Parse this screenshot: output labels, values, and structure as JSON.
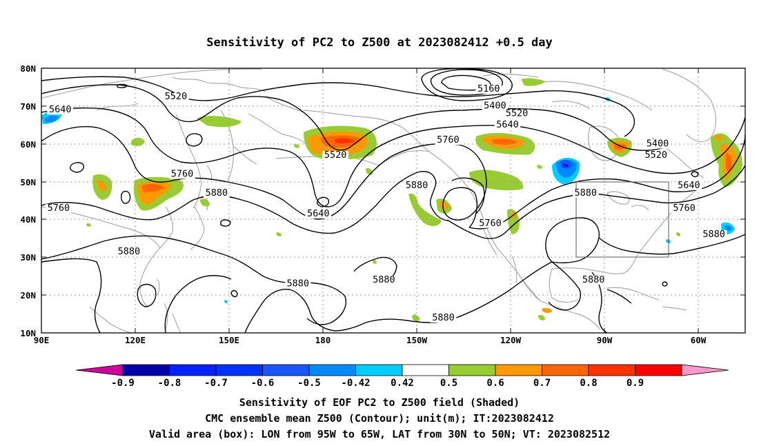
{
  "title": "Sensitivity of PC2 to Z500 at 2023082412 +0.5 day",
  "map": {
    "lat_labels": [
      "80N",
      "70N",
      "60N",
      "50N",
      "40N",
      "30N",
      "20N",
      "10N"
    ],
    "lon_labels": [
      "90E",
      "120E",
      "150E",
      "180",
      "150W",
      "120W",
      "90W",
      "60W"
    ],
    "contour_labels": [
      {
        "text": "5520",
        "lon": 133,
        "lat": 71.8
      },
      {
        "text": "5640",
        "lon": 96,
        "lat": 68.3
      },
      {
        "text": "5160",
        "lon": -127,
        "lat": 73.8
      },
      {
        "text": "5400",
        "lon": -125,
        "lat": 69.3
      },
      {
        "text": "5520",
        "lon": -118,
        "lat": 67.3
      },
      {
        "text": "5640",
        "lon": -121,
        "lat": 64.3
      },
      {
        "text": "5760",
        "lon": -140,
        "lat": 60.3
      },
      {
        "text": "5520",
        "lon": -176,
        "lat": 56.3
      },
      {
        "text": "5400",
        "lon": -73,
        "lat": 59.3
      },
      {
        "text": "5520",
        "lon": -73.5,
        "lat": 56.3
      },
      {
        "text": "5760",
        "lon": 135,
        "lat": 51.3
      },
      {
        "text": "5880",
        "lon": 146,
        "lat": 46.3
      },
      {
        "text": "5880",
        "lon": -150,
        "lat": 48.3
      },
      {
        "text": "5640",
        "lon": 178.5,
        "lat": 40.8
      },
      {
        "text": "5760",
        "lon": -126.5,
        "lat": 38.3
      },
      {
        "text": "5880",
        "lon": -96,
        "lat": 46.3
      },
      {
        "text": "5640",
        "lon": -63,
        "lat": 48.3
      },
      {
        "text": "5760",
        "lon": -64.5,
        "lat": 42.3
      },
      {
        "text": "5760",
        "lon": 95.5,
        "lat": 42.3
      },
      {
        "text": "5880",
        "lon": 118,
        "lat": 30.8
      },
      {
        "text": "5880",
        "lon": 172,
        "lat": 22.3
      },
      {
        "text": "5880",
        "lon": -160.5,
        "lat": 23.3
      },
      {
        "text": "5880",
        "lon": -93.5,
        "lat": 23.3
      },
      {
        "text": "5880",
        "lon": -141.5,
        "lat": 13.3
      },
      {
        "text": "5880",
        "lon": -55,
        "lat": 35.3
      }
    ],
    "valid_box": {
      "lon_from": -95,
      "lon_to": -65,
      "lat_from": 30,
      "lat_to": 50
    }
  },
  "colorbar": {
    "labels": [
      "-0.9",
      "-0.8",
      "-0.7",
      "-0.6",
      "-0.5",
      "-0.42",
      "0.42",
      "0.5",
      "0.6",
      "0.7",
      "0.8",
      "0.9"
    ],
    "colors": [
      "#0000a8",
      "#0022ff",
      "#0033ff",
      "#1a55ff",
      "#0088ff",
      "#00ccff",
      "#ffffff",
      "#99cc33",
      "#ff9900",
      "#ff6600",
      "#ff3300",
      "#ff0000"
    ],
    "left_end_color": "#cc0099",
    "right_end_color": "#ff99cc"
  },
  "footer": {
    "line1": "Sensitivity of EOF PC2 to Z500 field (Shaded)",
    "line2": "CMC ensemble mean Z500 (Contour); unit(m); IT:2023082412",
    "line3": "Valid area (box): LON from 95W to 65W, LAT from 30N to 50N; VT: 2023082512"
  }
}
